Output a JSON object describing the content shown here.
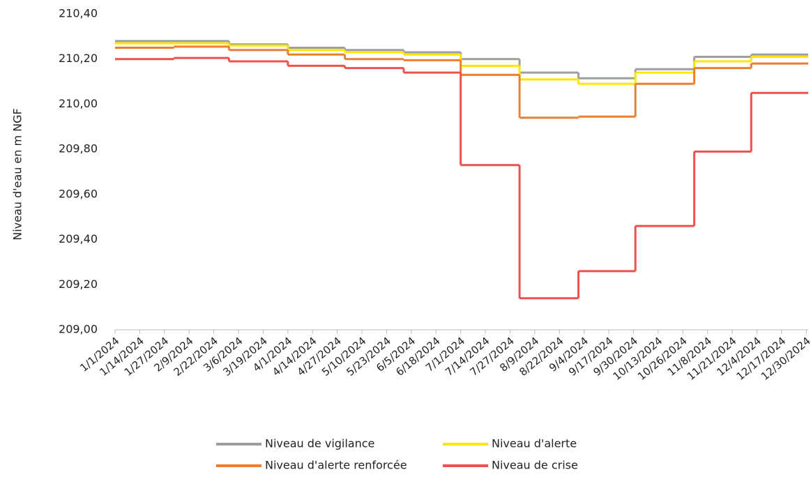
{
  "chart_data": {
    "type": "step-line",
    "y_label": "Niveau d'eau en m NGF",
    "x": [
      "2024-01-01",
      "2024-02-01",
      "2024-03-01",
      "2024-04-01",
      "2024-05-01",
      "2024-06-01",
      "2024-07-01",
      "2024-08-01",
      "2024-09-01",
      "2024-10-01",
      "2024-11-01",
      "2024-12-01"
    ],
    "xlim": [
      "2024-01-01",
      "2024-12-31"
    ],
    "xticks": [
      {
        "value": "2024-01-01",
        "label": "1/1/2024"
      },
      {
        "value": "2024-01-14",
        "label": "1/14/2024"
      },
      {
        "value": "2024-01-27",
        "label": "1/27/2024"
      },
      {
        "value": "2024-02-09",
        "label": "2/9/2024"
      },
      {
        "value": "2024-02-22",
        "label": "2/22/2024"
      },
      {
        "value": "2024-03-06",
        "label": "3/6/2024"
      },
      {
        "value": "2024-03-19",
        "label": "3/19/2024"
      },
      {
        "value": "2024-04-01",
        "label": "4/1/2024"
      },
      {
        "value": "2024-04-14",
        "label": "4/14/2024"
      },
      {
        "value": "2024-04-27",
        "label": "4/27/2024"
      },
      {
        "value": "2024-05-10",
        "label": "5/10/2024"
      },
      {
        "value": "2024-05-23",
        "label": "5/23/2024"
      },
      {
        "value": "2024-06-05",
        "label": "6/5/2024"
      },
      {
        "value": "2024-06-18",
        "label": "6/18/2024"
      },
      {
        "value": "2024-07-01",
        "label": "7/1/2024"
      },
      {
        "value": "2024-07-14",
        "label": "7/14/2024"
      },
      {
        "value": "2024-07-27",
        "label": "7/27/2024"
      },
      {
        "value": "2024-08-09",
        "label": "8/9/2024"
      },
      {
        "value": "2024-08-22",
        "label": "8/22/2024"
      },
      {
        "value": "2024-09-04",
        "label": "9/4/2024"
      },
      {
        "value": "2024-09-17",
        "label": "9/17/2024"
      },
      {
        "value": "2024-09-30",
        "label": "9/30/2024"
      },
      {
        "value": "2024-10-13",
        "label": "10/13/2024"
      },
      {
        "value": "2024-10-26",
        "label": "10/26/2024"
      },
      {
        "value": "2024-11-08",
        "label": "11/8/2024"
      },
      {
        "value": "2024-11-21",
        "label": "11/21/2024"
      },
      {
        "value": "2024-12-04",
        "label": "12/4/2024"
      },
      {
        "value": "2024-12-17",
        "label": "12/17/2024"
      },
      {
        "value": "2024-12-30",
        "label": "12/30/2024"
      }
    ],
    "ylim": [
      209.0,
      210.4
    ],
    "yticks": [
      {
        "value": 209.0,
        "label": "209,00"
      },
      {
        "value": 209.2,
        "label": "209,20"
      },
      {
        "value": 209.4,
        "label": "209,40"
      },
      {
        "value": 209.6,
        "label": "209,60"
      },
      {
        "value": 209.8,
        "label": "209,80"
      },
      {
        "value": 210.0,
        "label": "210,00"
      },
      {
        "value": 210.2,
        "label": "210,20"
      },
      {
        "value": 210.4,
        "label": "210,40"
      }
    ],
    "series": [
      {
        "name": "Niveau de vigilance",
        "color": "#9e9e9e",
        "values": [
          210.28,
          210.28,
          210.265,
          210.25,
          210.24,
          210.23,
          210.2,
          210.14,
          210.115,
          210.155,
          210.21,
          210.22
        ]
      },
      {
        "name": "Niveau d'alerte",
        "color": "#ffe600",
        "values": [
          210.27,
          210.27,
          210.26,
          210.24,
          210.23,
          210.22,
          210.17,
          210.11,
          210.09,
          210.14,
          210.19,
          210.21
        ]
      },
      {
        "name": "Niveau d'alerte renforcée",
        "color": "#ed7d31",
        "values": [
          210.25,
          210.255,
          210.24,
          210.22,
          210.2,
          210.195,
          210.13,
          209.94,
          209.945,
          210.09,
          210.16,
          210.18
        ]
      },
      {
        "name": "Niveau de crise",
        "color": "#f0504a",
        "values": [
          210.2,
          210.205,
          210.19,
          210.17,
          210.16,
          210.14,
          209.73,
          209.14,
          209.26,
          209.46,
          209.79,
          210.05
        ]
      }
    ]
  }
}
